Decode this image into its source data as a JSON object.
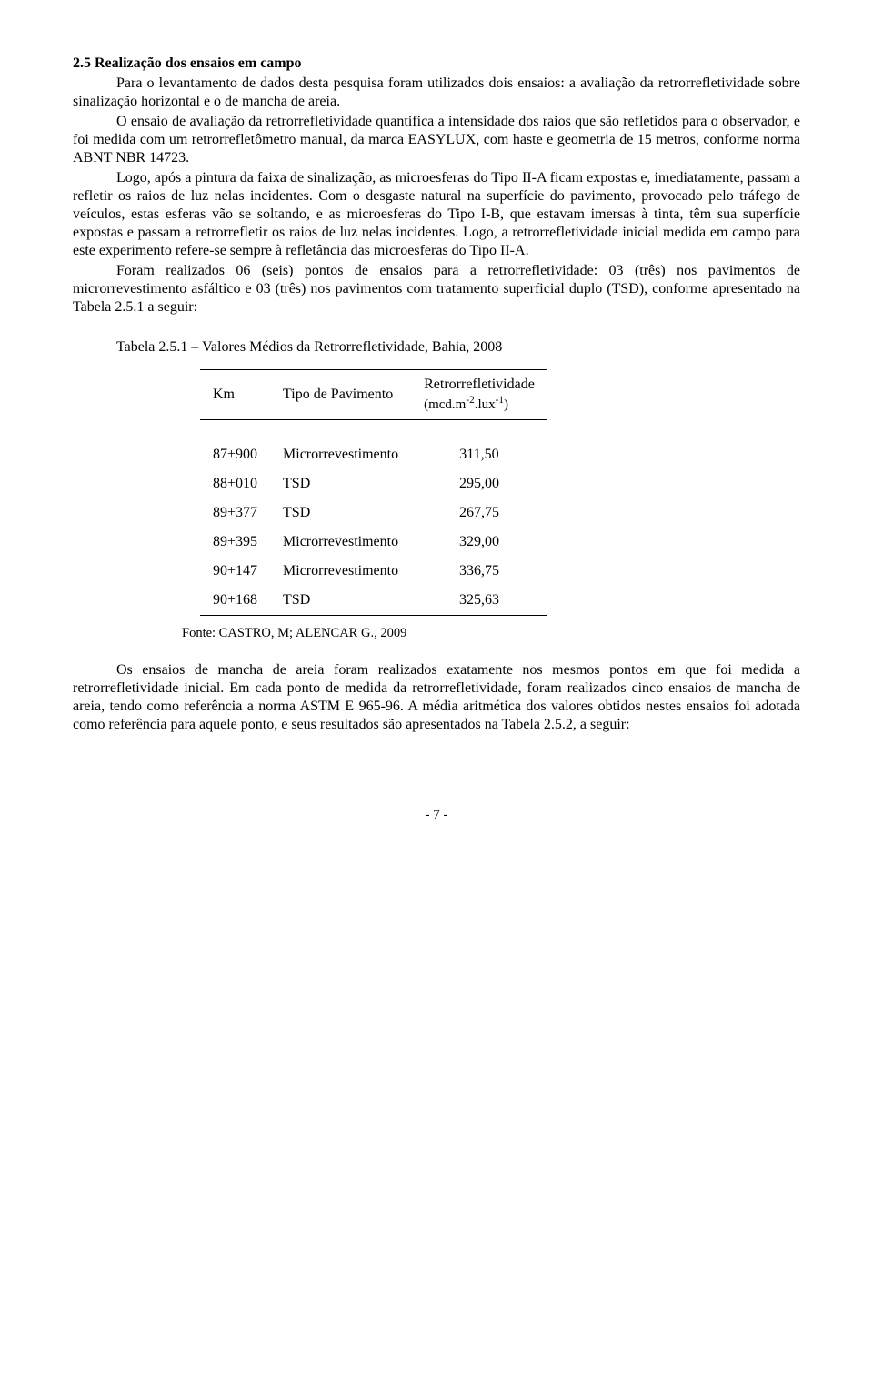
{
  "section": {
    "heading": "2.5 Realização dos ensaios em campo",
    "p1": "Para o levantamento de dados desta pesquisa foram utilizados dois ensaios: a avaliação da retrorrefletividade sobre sinalização horizontal e o de mancha de areia.",
    "p2": "O ensaio de avaliação da retrorrefletividade quantifica a intensidade dos raios que são refletidos para o observador, e foi medida com um retrorrefletômetro manual, da marca EASYLUX, com haste e geometria de 15 metros, conforme norma ABNT NBR 14723.",
    "p3": "Logo, após a pintura da faixa de sinalização, as microesferas do Tipo II-A ficam expostas e, imediatamente, passam a refletir os raios de luz nelas incidentes. Com o desgaste natural na superfície do pavimento, provocado pelo tráfego de veículos, estas esferas vão se soltando, e as microesferas do Tipo I-B, que estavam imersas à tinta, têm sua superfície expostas e passam a retrorrefletir os raios de luz nelas incidentes. Logo, a retrorrefletividade inicial medida em campo para este experimento refere-se sempre à refletância das microesferas do Tipo II-A.",
    "p4": "Foram realizados 06 (seis) pontos de ensaios para a retrorrefletividade: 03 (três) nos pavimentos de microrrevestimento asfáltico e 03 (três) nos pavimentos com tratamento superficial duplo (TSD), conforme apresentado na Tabela 2.5.1 a seguir:"
  },
  "table": {
    "caption": "Tabela 2.5.1 – Valores Médios da Retrorrefletividade, Bahia, 2008",
    "col1": "Km",
    "col2": "Tipo de Pavimento",
    "col3_line1": "Retrorrefletividade",
    "col3_line2_html": "(mcd.m<sup>-2</sup>.lux<sup>-1</sup>)",
    "rows": [
      {
        "km": "87+900",
        "tipo": "Microrrevestimento",
        "val": "311,50"
      },
      {
        "km": "88+010",
        "tipo": "TSD",
        "val": "295,00"
      },
      {
        "km": "89+377",
        "tipo": "TSD",
        "val": "267,75"
      },
      {
        "km": "89+395",
        "tipo": "Microrrevestimento",
        "val": "329,00"
      },
      {
        "km": "90+147",
        "tipo": "Microrrevestimento",
        "val": "336,75"
      },
      {
        "km": "90+168",
        "tipo": "TSD",
        "val": "325,63"
      }
    ],
    "source": "Fonte: CASTRO, M; ALENCAR G., 2009"
  },
  "after": {
    "p5": "Os ensaios de mancha de areia foram realizados exatamente nos mesmos pontos em que foi medida a retrorrefletividade inicial. Em cada ponto de medida da retrorrefletividade, foram realizados cinco ensaios de mancha de areia, tendo como referência a norma ASTM E 965-96. A média aritmética dos valores obtidos nestes ensaios foi adotada como referência para aquele ponto, e seus resultados são apresentados na Tabela 2.5.2, a seguir:"
  },
  "page_footer": "- 7 -",
  "style": {
    "text_color": "#000000",
    "background_color": "#ffffff",
    "border_color": "#000000",
    "base_fontsize_pt": 12,
    "caption_fontsize_pt": 12,
    "source_fontsize_pt": 11
  }
}
